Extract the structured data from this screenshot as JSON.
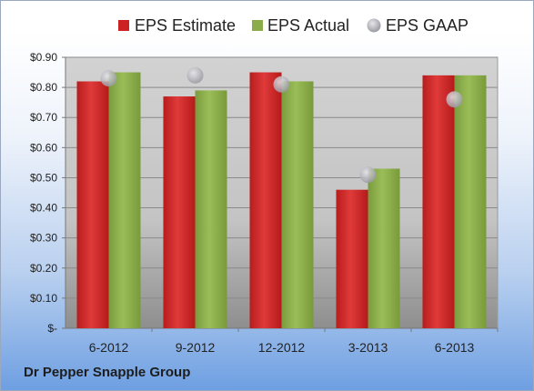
{
  "company_name": "Dr Pepper Snapple Group",
  "colors": {
    "estimate": "#cc2222",
    "actual": "#8aad4a",
    "gaap": "#b4b4bc"
  },
  "chart_data": {
    "type": "bar",
    "title": "",
    "xlabel": "",
    "ylabel": "",
    "categories": [
      "6-2012",
      "9-2012",
      "12-2012",
      "3-2013",
      "6-2013"
    ],
    "series": [
      {
        "name": "EPS Estimate",
        "mark": "bar",
        "values": [
          0.82,
          0.77,
          0.85,
          0.46,
          0.84
        ]
      },
      {
        "name": "EPS Actual",
        "mark": "bar",
        "values": [
          0.85,
          0.79,
          0.82,
          0.53,
          0.84
        ]
      },
      {
        "name": "EPS GAAP",
        "mark": "point",
        "values": [
          0.83,
          0.84,
          0.81,
          0.51,
          0.76
        ]
      }
    ],
    "ylim": [
      0,
      0.9
    ],
    "yticks": [
      0,
      0.1,
      0.2,
      0.3,
      0.4,
      0.5,
      0.6,
      0.7,
      0.8,
      0.9
    ],
    "ytick_labels": [
      "$-",
      "$0.10",
      "$0.20",
      "$0.30",
      "$0.40",
      "$0.50",
      "$0.60",
      "$0.70",
      "$0.80",
      "$0.90"
    ],
    "grid": true,
    "legend_position": "top"
  }
}
